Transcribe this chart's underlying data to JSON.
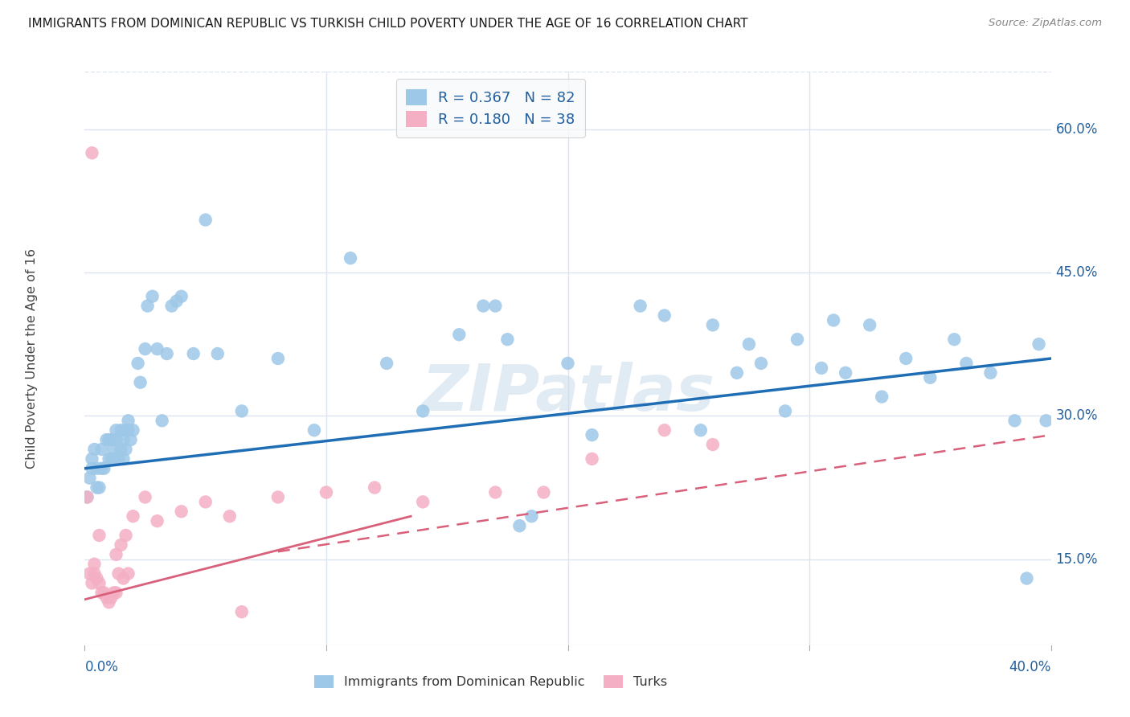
{
  "title": "IMMIGRANTS FROM DOMINICAN REPUBLIC VS TURKISH CHILD POVERTY UNDER THE AGE OF 16 CORRELATION CHART",
  "source": "Source: ZipAtlas.com",
  "ylabel": "Child Poverty Under the Age of 16",
  "x_min": 0.0,
  "x_max": 0.4,
  "y_min": 0.06,
  "y_max": 0.66,
  "y_ticks": [
    0.15,
    0.3,
    0.45,
    0.6
  ],
  "y_tick_labels": [
    "15.0%",
    "30.0%",
    "45.0%",
    "60.0%"
  ],
  "x_tick_labels_show": [
    "0.0%",
    "40.0%"
  ],
  "x_tick_positions_show": [
    0.0,
    0.4
  ],
  "x_tick_minor": [
    0.1,
    0.2,
    0.3
  ],
  "blue_R": 0.367,
  "blue_N": 82,
  "pink_R": 0.18,
  "pink_N": 38,
  "blue_color": "#9ec8e8",
  "pink_color": "#f4afc5",
  "blue_line_color": "#1f6eb5",
  "pink_line_color": "#d9607a",
  "grid_color": "#dce4f0",
  "background_color": "#ffffff",
  "watermark": "ZIPatlas",
  "blue_scatter_x": [
    0.001,
    0.002,
    0.003,
    0.003,
    0.004,
    0.005,
    0.005,
    0.006,
    0.007,
    0.007,
    0.008,
    0.009,
    0.01,
    0.01,
    0.011,
    0.011,
    0.012,
    0.012,
    0.013,
    0.013,
    0.014,
    0.015,
    0.015,
    0.016,
    0.016,
    0.017,
    0.017,
    0.018,
    0.018,
    0.019,
    0.02,
    0.022,
    0.023,
    0.025,
    0.026,
    0.028,
    0.03,
    0.032,
    0.034,
    0.036,
    0.038,
    0.04,
    0.045,
    0.05,
    0.055,
    0.065,
    0.08,
    0.095,
    0.11,
    0.125,
    0.14,
    0.155,
    0.165,
    0.17,
    0.175,
    0.18,
    0.185,
    0.2,
    0.21,
    0.23,
    0.24,
    0.255,
    0.26,
    0.27,
    0.275,
    0.28,
    0.29,
    0.295,
    0.305,
    0.31,
    0.315,
    0.325,
    0.33,
    0.34,
    0.35,
    0.36,
    0.365,
    0.375,
    0.385,
    0.39,
    0.395,
    0.398
  ],
  "blue_scatter_y": [
    0.215,
    0.235,
    0.255,
    0.245,
    0.265,
    0.225,
    0.245,
    0.225,
    0.245,
    0.265,
    0.245,
    0.275,
    0.255,
    0.275,
    0.255,
    0.275,
    0.255,
    0.265,
    0.275,
    0.285,
    0.255,
    0.265,
    0.285,
    0.255,
    0.275,
    0.265,
    0.285,
    0.285,
    0.295,
    0.275,
    0.285,
    0.355,
    0.335,
    0.37,
    0.415,
    0.425,
    0.37,
    0.295,
    0.365,
    0.415,
    0.42,
    0.425,
    0.365,
    0.505,
    0.365,
    0.305,
    0.36,
    0.285,
    0.465,
    0.355,
    0.305,
    0.385,
    0.415,
    0.415,
    0.38,
    0.185,
    0.195,
    0.355,
    0.28,
    0.415,
    0.405,
    0.285,
    0.395,
    0.345,
    0.375,
    0.355,
    0.305,
    0.38,
    0.35,
    0.4,
    0.345,
    0.395,
    0.32,
    0.36,
    0.34,
    0.38,
    0.355,
    0.345,
    0.295,
    0.13,
    0.375,
    0.295
  ],
  "pink_scatter_x": [
    0.001,
    0.002,
    0.003,
    0.004,
    0.004,
    0.005,
    0.006,
    0.007,
    0.008,
    0.009,
    0.01,
    0.011,
    0.012,
    0.013,
    0.013,
    0.014,
    0.015,
    0.016,
    0.017,
    0.018,
    0.02,
    0.025,
    0.03,
    0.04,
    0.05,
    0.06,
    0.065,
    0.08,
    0.1,
    0.12,
    0.14,
    0.17,
    0.19,
    0.21,
    0.24,
    0.26,
    0.003,
    0.006
  ],
  "pink_scatter_y": [
    0.215,
    0.135,
    0.125,
    0.145,
    0.135,
    0.13,
    0.125,
    0.115,
    0.115,
    0.11,
    0.105,
    0.11,
    0.115,
    0.155,
    0.115,
    0.135,
    0.165,
    0.13,
    0.175,
    0.135,
    0.195,
    0.215,
    0.19,
    0.2,
    0.21,
    0.195,
    0.095,
    0.215,
    0.22,
    0.225,
    0.21,
    0.22,
    0.22,
    0.255,
    0.285,
    0.27,
    0.575,
    0.175
  ],
  "blue_trend": [
    0.0,
    0.245,
    0.4,
    0.36
  ],
  "pink_solid_trend": [
    0.0,
    0.108,
    0.135,
    0.195
  ],
  "pink_dashed_trend": [
    0.08,
    0.158,
    0.4,
    0.28
  ]
}
